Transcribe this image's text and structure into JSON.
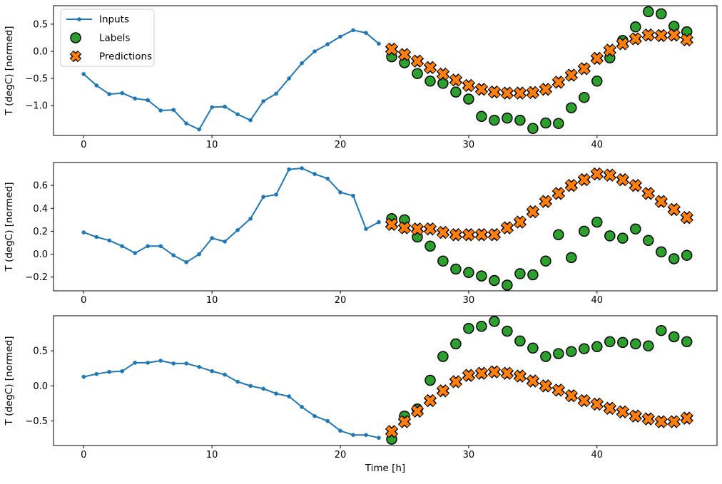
{
  "figure_title": "",
  "chart_data": [
    {
      "type": "line",
      "subplot": 1,
      "ylabel": "T (degC) [normed]",
      "xlabel": "",
      "xlim": [
        -2.35,
        49.35
      ],
      "ylim": [
        -1.55,
        0.84
      ],
      "xticks": [
        0,
        10,
        20,
        30,
        40
      ],
      "yticks": [
        0.5,
        0.0,
        -0.5,
        -1.0
      ],
      "legend": {
        "visible": true,
        "position": "upper left"
      },
      "series": [
        {
          "name": "Inputs",
          "type": "line-dot",
          "color": "#1f77b4",
          "x": [
            0,
            1,
            2,
            3,
            4,
            5,
            6,
            7,
            8,
            9,
            10,
            11,
            12,
            13,
            14,
            15,
            16,
            17,
            18,
            19,
            20,
            21,
            22,
            23
          ],
          "y": [
            -0.42,
            -0.63,
            -0.79,
            -0.77,
            -0.87,
            -0.9,
            -1.09,
            -1.08,
            -1.33,
            -1.44,
            -1.03,
            -1.02,
            -1.16,
            -1.27,
            -0.92,
            -0.78,
            -0.5,
            -0.22,
            0.0,
            0.13,
            0.27,
            0.39,
            0.34,
            0.14
          ]
        },
        {
          "name": "Labels",
          "type": "scatter-circle",
          "color": "#2ca02c",
          "edgecolor": "#000000",
          "x": [
            24,
            25,
            26,
            27,
            28,
            29,
            30,
            31,
            32,
            33,
            34,
            35,
            36,
            37,
            38,
            39,
            40,
            41,
            42,
            43,
            44,
            45,
            46,
            47
          ],
          "y": [
            -0.1,
            -0.21,
            -0.41,
            -0.55,
            -0.59,
            -0.75,
            -0.88,
            -1.2,
            -1.27,
            -1.23,
            -1.27,
            -1.42,
            -1.32,
            -1.33,
            -1.04,
            -0.85,
            -0.55,
            -0.12,
            0.2,
            0.45,
            0.73,
            0.69,
            0.46,
            0.36
          ]
        },
        {
          "name": "Predictions",
          "type": "scatter-x",
          "color": "#ff7f0e",
          "edgecolor": "#000000",
          "x": [
            24,
            25,
            26,
            27,
            28,
            29,
            30,
            31,
            32,
            33,
            34,
            35,
            36,
            37,
            38,
            39,
            40,
            41,
            42,
            43,
            44,
            45,
            46,
            47
          ],
          "y": [
            0.04,
            -0.06,
            -0.18,
            -0.3,
            -0.42,
            -0.53,
            -0.63,
            -0.7,
            -0.75,
            -0.77,
            -0.77,
            -0.76,
            -0.7,
            -0.57,
            -0.44,
            -0.32,
            -0.13,
            0.02,
            0.14,
            0.23,
            0.3,
            0.29,
            0.3,
            0.21
          ]
        }
      ]
    },
    {
      "type": "line",
      "subplot": 2,
      "ylabel": "T (degC) [normed]",
      "xlabel": "",
      "xlim": [
        -2.35,
        49.35
      ],
      "ylim": [
        -0.32,
        0.8
      ],
      "xticks": [
        0,
        10,
        20,
        30,
        40
      ],
      "yticks": [
        0.6,
        0.4,
        0.2,
        0.0,
        -0.2
      ],
      "legend": {
        "visible": false,
        "position": ""
      },
      "series": [
        {
          "name": "Inputs",
          "type": "line-dot",
          "color": "#1f77b4",
          "x": [
            0,
            1,
            2,
            3,
            4,
            5,
            6,
            7,
            8,
            9,
            10,
            11,
            12,
            13,
            14,
            15,
            16,
            17,
            18,
            19,
            20,
            21,
            22,
            23
          ],
          "y": [
            0.19,
            0.15,
            0.12,
            0.07,
            0.01,
            0.07,
            0.07,
            -0.01,
            -0.07,
            0.0,
            0.14,
            0.11,
            0.21,
            0.31,
            0.5,
            0.52,
            0.74,
            0.75,
            0.7,
            0.66,
            0.54,
            0.51,
            0.22,
            0.28
          ]
        },
        {
          "name": "Labels",
          "type": "scatter-circle",
          "color": "#2ca02c",
          "edgecolor": "#000000",
          "x": [
            24,
            25,
            26,
            27,
            28,
            29,
            30,
            31,
            32,
            33,
            34,
            35,
            36,
            37,
            38,
            39,
            40,
            41,
            42,
            43,
            44,
            45,
            46,
            47
          ],
          "y": [
            0.31,
            0.3,
            0.15,
            0.07,
            -0.06,
            -0.13,
            -0.16,
            -0.19,
            -0.23,
            -0.27,
            -0.17,
            -0.18,
            -0.06,
            0.17,
            -0.03,
            0.2,
            0.28,
            0.16,
            0.14,
            0.22,
            0.12,
            0.02,
            -0.04,
            -0.01
          ]
        },
        {
          "name": "Predictions",
          "type": "scatter-x",
          "color": "#ff7f0e",
          "edgecolor": "#000000",
          "x": [
            24,
            25,
            26,
            27,
            28,
            29,
            30,
            31,
            32,
            33,
            34,
            35,
            36,
            37,
            38,
            39,
            40,
            41,
            42,
            43,
            44,
            45,
            46,
            47
          ],
          "y": [
            0.26,
            0.23,
            0.22,
            0.22,
            0.19,
            0.17,
            0.17,
            0.17,
            0.17,
            0.23,
            0.28,
            0.37,
            0.46,
            0.53,
            0.6,
            0.65,
            0.7,
            0.69,
            0.65,
            0.6,
            0.53,
            0.46,
            0.39,
            0.32
          ]
        }
      ]
    },
    {
      "type": "line",
      "subplot": 3,
      "ylabel": "T (degC) [normed]",
      "xlabel": "Time [h]",
      "xlim": [
        -2.35,
        49.35
      ],
      "ylim": [
        -0.85,
        1.0
      ],
      "xticks": [
        0,
        10,
        20,
        30,
        40
      ],
      "yticks": [
        0.5,
        0.0,
        -0.5
      ],
      "legend": {
        "visible": false,
        "position": ""
      },
      "series": [
        {
          "name": "Inputs",
          "type": "line-dot",
          "color": "#1f77b4",
          "x": [
            0,
            1,
            2,
            3,
            4,
            5,
            6,
            7,
            8,
            9,
            10,
            11,
            12,
            13,
            14,
            15,
            16,
            17,
            18,
            19,
            20,
            21,
            22,
            23
          ],
          "y": [
            0.13,
            0.17,
            0.2,
            0.21,
            0.33,
            0.33,
            0.36,
            0.32,
            0.32,
            0.27,
            0.21,
            0.16,
            0.06,
            0.0,
            -0.04,
            -0.11,
            -0.15,
            -0.3,
            -0.43,
            -0.5,
            -0.64,
            -0.7,
            -0.7,
            -0.74
          ]
        },
        {
          "name": "Labels",
          "type": "scatter-circle",
          "color": "#2ca02c",
          "edgecolor": "#000000",
          "x": [
            24,
            25,
            26,
            27,
            28,
            29,
            30,
            31,
            32,
            33,
            34,
            35,
            36,
            37,
            38,
            39,
            40,
            41,
            42,
            43,
            44,
            45,
            46,
            47
          ],
          "y": [
            -0.76,
            -0.43,
            -0.33,
            0.08,
            0.42,
            0.6,
            0.82,
            0.85,
            0.92,
            0.78,
            0.64,
            0.54,
            0.42,
            0.46,
            0.49,
            0.53,
            0.56,
            0.63,
            0.62,
            0.6,
            0.57,
            0.79,
            0.7,
            0.63
          ]
        },
        {
          "name": "Predictions",
          "type": "scatter-x",
          "color": "#ff7f0e",
          "edgecolor": "#000000",
          "x": [
            24,
            25,
            26,
            27,
            28,
            29,
            30,
            31,
            32,
            33,
            34,
            35,
            36,
            37,
            38,
            39,
            40,
            41,
            42,
            43,
            44,
            45,
            46,
            47
          ],
          "y": [
            -0.65,
            -0.51,
            -0.36,
            -0.21,
            -0.07,
            0.06,
            0.15,
            0.18,
            0.2,
            0.18,
            0.14,
            0.07,
            0.0,
            -0.06,
            -0.14,
            -0.21,
            -0.26,
            -0.32,
            -0.37,
            -0.43,
            -0.47,
            -0.51,
            -0.51,
            -0.46
          ]
        }
      ]
    }
  ]
}
